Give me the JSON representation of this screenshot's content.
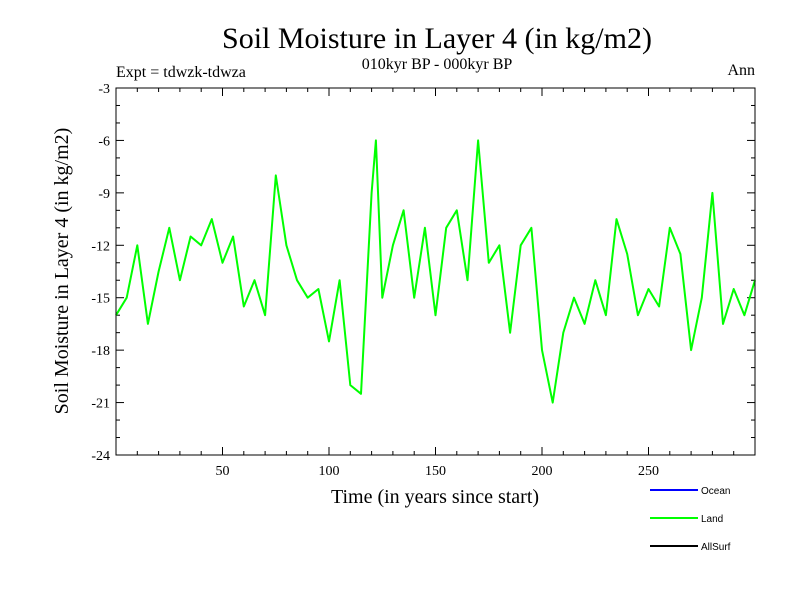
{
  "chart_data": {
    "type": "line",
    "title": "Soil Moisture in Layer 4 (in kg/m2)",
    "subtitle": "010kyr BP - 000kyr BP",
    "experiment": "Expt = tdwzk-tdwza",
    "season": "Ann",
    "xlabel": "Time (in years since start)",
    "ylabel": "Soil Moisture in Layer 4 (in kg/m2)",
    "xlim": [
      0,
      300
    ],
    "ylim": [
      -24,
      -3
    ],
    "xticks": [
      50,
      100,
      150,
      200,
      250
    ],
    "yticks": [
      -3,
      -6,
      -9,
      -12,
      -15,
      -18,
      -21,
      -24
    ],
    "legend": [
      {
        "name": "Ocean",
        "color": "#0000ff"
      },
      {
        "name": "Land",
        "color": "#00ff00"
      },
      {
        "name": "AllSurf",
        "color": "#000000"
      }
    ],
    "series": [
      {
        "name": "Land",
        "color": "#00ff00",
        "x": [
          0,
          5,
          10,
          15,
          20,
          25,
          30,
          35,
          40,
          45,
          50,
          55,
          60,
          65,
          70,
          75,
          80,
          85,
          90,
          95,
          100,
          105,
          110,
          115,
          120,
          122,
          125,
          130,
          135,
          140,
          145,
          150,
          155,
          160,
          165,
          170,
          175,
          180,
          185,
          190,
          195,
          200,
          205,
          210,
          215,
          220,
          225,
          230,
          235,
          240,
          245,
          250,
          255,
          260,
          265,
          270,
          275,
          280,
          285,
          290,
          295,
          300
        ],
        "values": [
          -16,
          -15,
          -12,
          -16.5,
          -13.5,
          -11,
          -14,
          -11.5,
          -12,
          -10.5,
          -13,
          -11.5,
          -15.5,
          -14,
          -16,
          -8,
          -12,
          -14,
          -15,
          -14.5,
          -17.5,
          -14,
          -20,
          -20.5,
          -9,
          -6,
          -15,
          -12,
          -10,
          -15,
          -11,
          -16,
          -11,
          -10,
          -14,
          -6,
          -13,
          -12,
          -17,
          -12,
          -11,
          -18,
          -21,
          -17,
          -15,
          -16.5,
          -14,
          -16,
          -10.5,
          -12.5,
          -16,
          -14.5,
          -15.5,
          -11,
          -12.5,
          -18,
          -15,
          -9,
          -16.5,
          -14.5,
          -16,
          -14
        ]
      }
    ]
  }
}
